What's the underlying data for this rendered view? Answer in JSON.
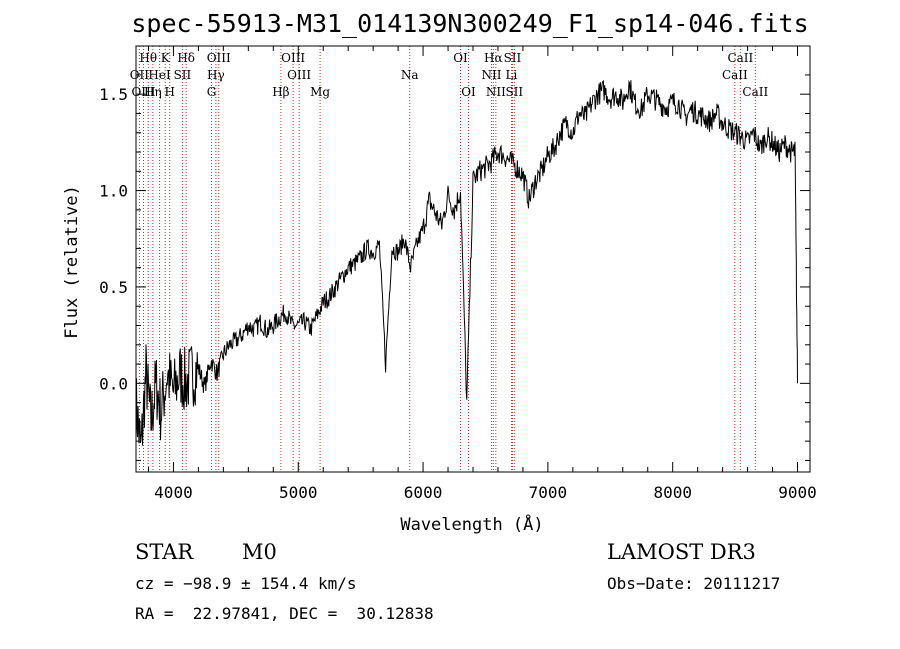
{
  "chart_data": {
    "type": "line",
    "title": "spec-55913-M31_014139N300249_F1_sp14-046.fits",
    "xlabel": "Wavelength (Å)",
    "ylabel": "Flux (relative)",
    "xlim": [
      3700,
      9100
    ],
    "ylim": [
      -0.46,
      1.75
    ],
    "xticks": [
      4000,
      5000,
      6000,
      7000,
      8000,
      9000
    ],
    "yticks": [
      0.0,
      0.5,
      1.0,
      1.5
    ],
    "ytick_labels": [
      "0.0",
      "0.5",
      "1.0",
      "1.5"
    ],
    "series": [
      {
        "name": "flux",
        "x": [
          3700,
          3740,
          3780,
          3820,
          3860,
          3900,
          3950,
          4000,
          4050,
          4100,
          4150,
          4200,
          4250,
          4300,
          4350,
          4400,
          4450,
          4500,
          4550,
          4600,
          4650,
          4700,
          4750,
          4800,
          4850,
          4900,
          4950,
          5000,
          5050,
          5100,
          5150,
          5200,
          5250,
          5300,
          5350,
          5400,
          5450,
          5500,
          5550,
          5600,
          5650,
          5700,
          5750,
          5800,
          5850,
          5900,
          5950,
          6000,
          6050,
          6100,
          6150,
          6200,
          6250,
          6300,
          6350,
          6400,
          6450,
          6500,
          6550,
          6600,
          6650,
          6700,
          6750,
          6800,
          6850,
          6900,
          6950,
          7000,
          7050,
          7100,
          7150,
          7200,
          7250,
          7300,
          7350,
          7400,
          7450,
          7500,
          7550,
          7600,
          7650,
          7700,
          7750,
          7800,
          7850,
          7900,
          7950,
          8000,
          8050,
          8100,
          8150,
          8200,
          8250,
          8300,
          8350,
          8400,
          8450,
          8500,
          8550,
          8600,
          8650,
          8700,
          8750,
          8800,
          8850,
          8900,
          8950,
          8980,
          9000
        ],
        "y": [
          -0.1,
          -0.35,
          0.05,
          -0.2,
          0.0,
          -0.15,
          0.05,
          -0.05,
          0.05,
          0.0,
          0.05,
          0.08,
          -0.02,
          0.12,
          0.05,
          0.15,
          0.2,
          0.22,
          0.25,
          0.3,
          0.28,
          0.32,
          0.27,
          0.3,
          0.34,
          0.37,
          0.3,
          0.3,
          0.32,
          0.28,
          0.35,
          0.42,
          0.45,
          0.5,
          0.55,
          0.6,
          0.62,
          0.65,
          0.7,
          0.68,
          0.72,
          0.1,
          0.7,
          0.68,
          0.75,
          0.6,
          0.72,
          0.8,
          0.95,
          0.88,
          0.82,
          0.98,
          0.9,
          1.0,
          -0.1,
          1.05,
          1.1,
          1.12,
          1.15,
          1.2,
          1.18,
          1.15,
          1.12,
          1.08,
          0.95,
          1.05,
          1.1,
          1.18,
          1.22,
          1.3,
          1.35,
          1.3,
          1.4,
          1.38,
          1.45,
          1.5,
          1.52,
          1.48,
          1.5,
          1.46,
          1.55,
          1.45,
          1.42,
          1.5,
          1.48,
          1.45,
          1.43,
          1.46,
          1.45,
          1.38,
          1.42,
          1.4,
          1.38,
          1.36,
          1.4,
          1.35,
          1.32,
          1.3,
          1.28,
          1.25,
          1.3,
          1.22,
          1.28,
          1.25,
          1.2,
          1.24,
          1.2,
          1.2,
          0.0
        ]
      }
    ],
    "lines": [
      {
        "name": "Hθ",
        "wavelength": 3798
      },
      {
        "name": "OII",
        "wavelength": 3727
      },
      {
        "name": "OIII",
        "wavelength": 3760
      },
      {
        "name": "Hη",
        "wavelength": 3835
      },
      {
        "name": "CaII K",
        "wavelength": 3934
      },
      {
        "name": "HeI",
        "wavelength": 3889
      },
      {
        "name": "H",
        "wavelength": 3970
      },
      {
        "name": "SII",
        "wavelength": 4072
      },
      {
        "name": "Hδ",
        "wavelength": 4102
      },
      {
        "name": "OIII",
        "wavelength": 4363
      },
      {
        "name": "Hγ",
        "wavelength": 4340
      },
      {
        "name": "G",
        "wavelength": 4305
      },
      {
        "name": "Hβ",
        "wavelength": 4861
      },
      {
        "name": "OIII",
        "wavelength": 4959
      },
      {
        "name": "OIII",
        "wavelength": 5007
      },
      {
        "name": "Mg",
        "wavelength": 5175
      },
      {
        "name": "Na",
        "wavelength": 5893
      },
      {
        "name": "OI",
        "wavelength": 6300
      },
      {
        "name": "OI",
        "wavelength": 6364
      },
      {
        "name": "Hα",
        "wavelength": 6563
      },
      {
        "name": "NII",
        "wavelength": 6548
      },
      {
        "name": "NII",
        "wavelength": 6583
      },
      {
        "name": "SII",
        "wavelength": 6716
      },
      {
        "name": "Li",
        "wavelength": 6708
      },
      {
        "name": "SII",
        "wavelength": 6731
      },
      {
        "name": "CaII",
        "wavelength": 8498
      },
      {
        "name": "CaII",
        "wavelength": 8542
      },
      {
        "name": "CaII",
        "wavelength": 8662
      }
    ],
    "line_label_rows": [
      [
        {
          "t": "Hθ",
          "w": 3798
        },
        {
          "t": "K",
          "w": 3934
        },
        {
          "t": "Hδ",
          "w": 4102
        },
        {
          "t": "OIII",
          "w": 4363
        },
        {
          "t": "OIII",
          "w": 4959
        },
        {
          "t": "OI",
          "w": 6300
        },
        {
          "t": "Hα",
          "w": 6563
        },
        {
          "t": "SII",
          "w": 6716
        },
        {
          "t": "CaII",
          "w": 8542
        }
      ],
      [
        {
          "t": "OII",
          "w": 3727
        },
        {
          "t": "HeI",
          "w": 3889
        },
        {
          "t": "SII",
          "w": 4072
        },
        {
          "t": "Hγ",
          "w": 4340
        },
        {
          "t": "OIII",
          "w": 5007
        },
        {
          "t": "Na",
          "w": 5893
        },
        {
          "t": "NII",
          "w": 6548
        },
        {
          "t": "Li",
          "w": 6708
        },
        {
          "t": "CaII",
          "w": 8498
        }
      ],
      [
        {
          "t": "OIII",
          "w": 3760
        },
        {
          "t": "Hη",
          "w": 3835
        },
        {
          "t": "H",
          "w": 3970
        },
        {
          "t": "G",
          "w": 4305
        },
        {
          "t": "Hβ",
          "w": 4861
        },
        {
          "t": "Mg",
          "w": 5175
        },
        {
          "t": "OI",
          "w": 6364
        },
        {
          "t": "NII",
          "w": 6583
        },
        {
          "t": "SII",
          "w": 6731
        },
        {
          "t": "CaII",
          "w": 8662
        }
      ]
    ]
  },
  "info": {
    "object_type": "STAR",
    "subclass": "M0",
    "survey": "LAMOST DR3",
    "cz": "cz = −98.9 ± 154.4 km/s",
    "obs_date": "Obs−Date: 20111217",
    "coords": "RA =  22.97841, DEC =  30.12838"
  },
  "colors": {
    "axis": "#000000",
    "spectrum": "#000000",
    "line_marker": "#c0302a"
  }
}
